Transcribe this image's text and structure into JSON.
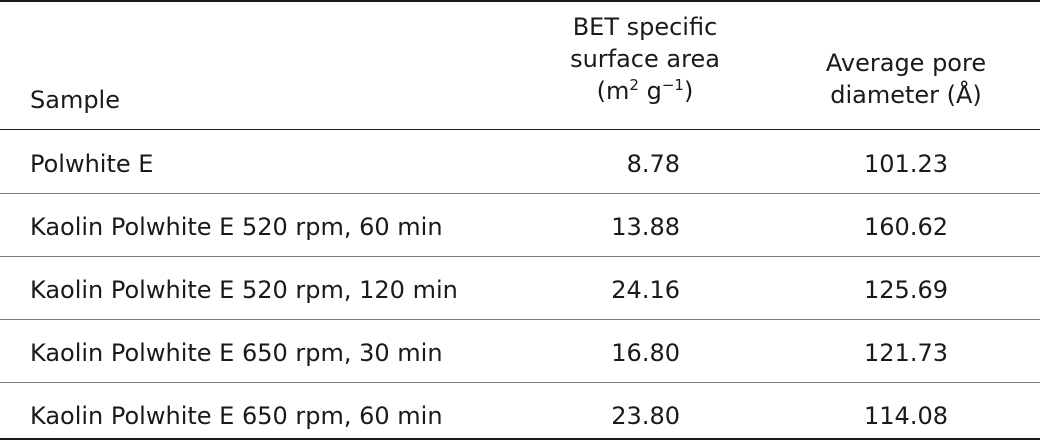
{
  "table": {
    "headers": {
      "sample": "Sample",
      "bet_line1": "BET specific",
      "bet_line2": "surface area",
      "bet_unit_open": "(m",
      "bet_unit_sup1": "2",
      "bet_unit_mid": " g",
      "bet_unit_sup2": "−1",
      "bet_unit_close": ")",
      "pore_line1": "Average pore",
      "pore_line2": "diameter (Å)"
    },
    "rows": [
      {
        "sample": "Polwhite E",
        "bet": "8.78",
        "pore": "101.23"
      },
      {
        "sample": "Kaolin Polwhite E 520 rpm, 60 min",
        "bet": "13.88",
        "pore": "160.62"
      },
      {
        "sample": "Kaolin Polwhite E 520 rpm, 120 min",
        "bet": "24.16",
        "pore": "125.69"
      },
      {
        "sample": "Kaolin Polwhite E 650 rpm, 30 min",
        "bet": "16.80",
        "pore": "121.73"
      },
      {
        "sample": "Kaolin Polwhite E 650 rpm, 60 min",
        "bet": "23.80",
        "pore": "114.08"
      }
    ]
  }
}
